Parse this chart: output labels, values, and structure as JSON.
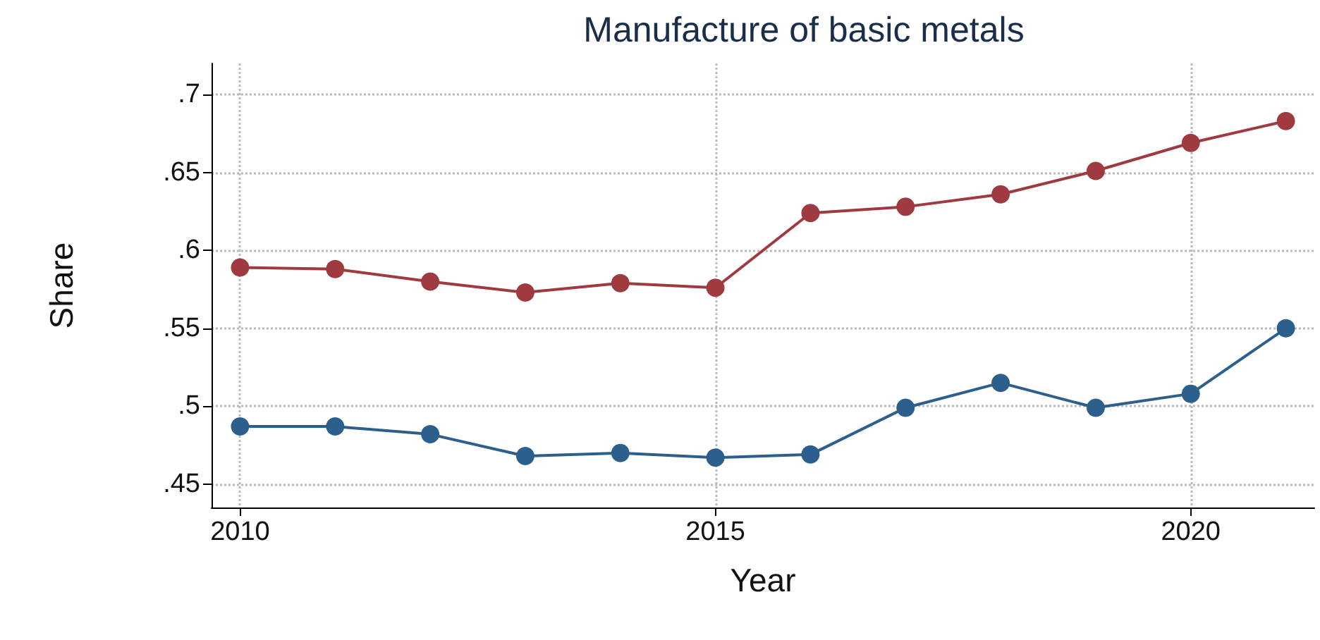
{
  "chart_data": {
    "type": "line",
    "title": "Manufacture of basic metals",
    "xlabel": "Year",
    "ylabel": "Share",
    "x": [
      2010,
      2011,
      2012,
      2013,
      2014,
      2015,
      2016,
      2017,
      2018,
      2019,
      2020,
      2021
    ],
    "series": [
      {
        "color": "#9e3a40",
        "values": [
          0.589,
          0.588,
          0.58,
          0.573,
          0.579,
          0.576,
          0.624,
          0.628,
          0.636,
          0.651,
          0.669,
          0.683
        ]
      },
      {
        "color": "#2c5f8c",
        "values": [
          0.487,
          0.487,
          0.482,
          0.468,
          0.47,
          0.467,
          0.469,
          0.499,
          0.515,
          0.499,
          0.508,
          0.55
        ]
      }
    ],
    "xlim": [
      2009.7,
      2021.3
    ],
    "xticks": [
      2010,
      2015,
      2020
    ],
    "ylim": [
      0.435,
      0.72
    ],
    "yticks": [
      {
        "value": 0.45,
        "label": ".45"
      },
      {
        "value": 0.5,
        "label": ".5"
      },
      {
        "value": 0.55,
        "label": ".55"
      },
      {
        "value": 0.6,
        "label": ".6"
      },
      {
        "value": 0.65,
        "label": ".65"
      },
      {
        "value": 0.7,
        "label": ".7"
      }
    ],
    "grid": true,
    "marker": "circle",
    "line_style": "solid"
  }
}
